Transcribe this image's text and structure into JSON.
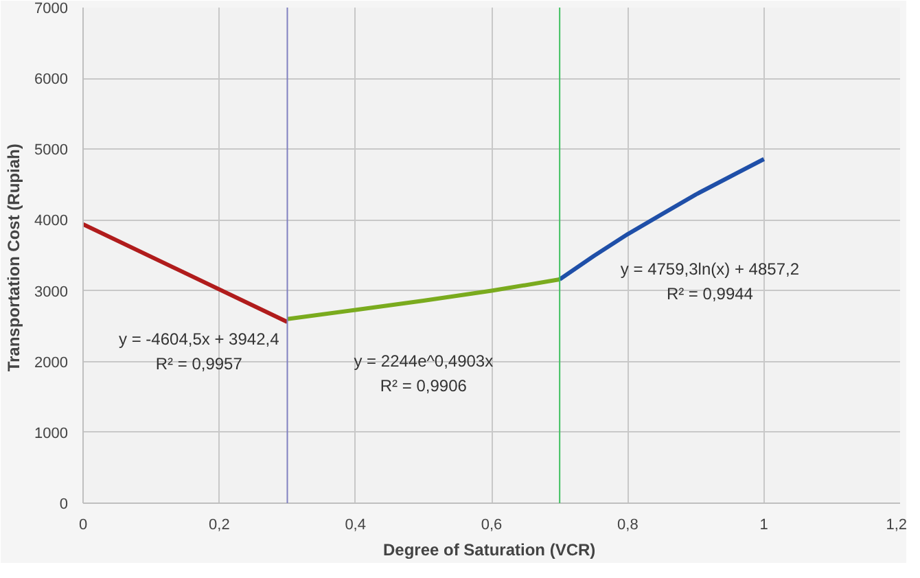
{
  "chart_data": {
    "type": "line",
    "xlabel": "Degree of Saturation  (VCR)",
    "ylabel": "Transportation Cost  (Rupiah)",
    "xlim": [
      0,
      1.2
    ],
    "ylim": [
      0,
      7000
    ],
    "xticks": [
      0,
      {
        "value": 0.2,
        "label": "0,2"
      },
      {
        "value": 0.4,
        "label": "0,4"
      },
      {
        "value": 0.6,
        "label": "0,6"
      },
      {
        "value": 0.8,
        "label": "0,8"
      },
      1,
      {
        "value": 1.2,
        "label": "1,2"
      }
    ],
    "yticks": [
      0,
      1000,
      2000,
      3000,
      4000,
      5000,
      6000,
      7000
    ],
    "grid": true,
    "series": [
      {
        "color": "#b01c1c",
        "x": [
          0,
          0.3
        ],
        "values": [
          3940,
          2560
        ]
      },
      {
        "color": "#7aab1e",
        "x": [
          0.3,
          0.4,
          0.5,
          0.6,
          0.7
        ],
        "values": [
          2600,
          2730,
          2860,
          3000,
          3160
        ]
      },
      {
        "color": "#1f4fa8",
        "x": [
          0.7,
          0.75,
          0.8,
          0.85,
          0.9,
          0.95,
          1
        ],
        "values": [
          3160,
          3490,
          3800,
          4080,
          4360,
          4610,
          4860
        ]
      }
    ],
    "ref_lines": [
      {
        "axis": "x",
        "value": 0.3,
        "color": "#8080c0"
      },
      {
        "axis": "x",
        "value": 0.7,
        "color": "#40c060"
      }
    ],
    "annotations": [
      "y = -4604,5x + 3942,4",
      "R² = 0,9957",
      "y = 2244e^0,4903x",
      "R² = 0,9906",
      "y = 4759,3ln(x) + 4857,2",
      "R² = 0,9944"
    ]
  }
}
